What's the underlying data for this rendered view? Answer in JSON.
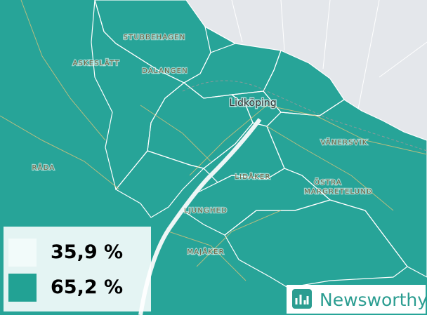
{
  "map": {
    "labels": [
      "STUBBEHAGEN",
      "ASKESLÄTT",
      "DALANGEN",
      "Lidköping",
      "VÄNERSVIK",
      "RÅDA",
      "LIDÅKER",
      "ÖSTRA",
      "MARGRETELUND",
      "LJUNGHED",
      "MAJÅKER"
    ]
  },
  "legend": {
    "items": [
      {
        "label": "35,9 %",
        "color": "#f2fbfa"
      },
      {
        "label": "65,2 %",
        "color": "#22a294"
      }
    ]
  },
  "brand": "Newsworthy"
}
